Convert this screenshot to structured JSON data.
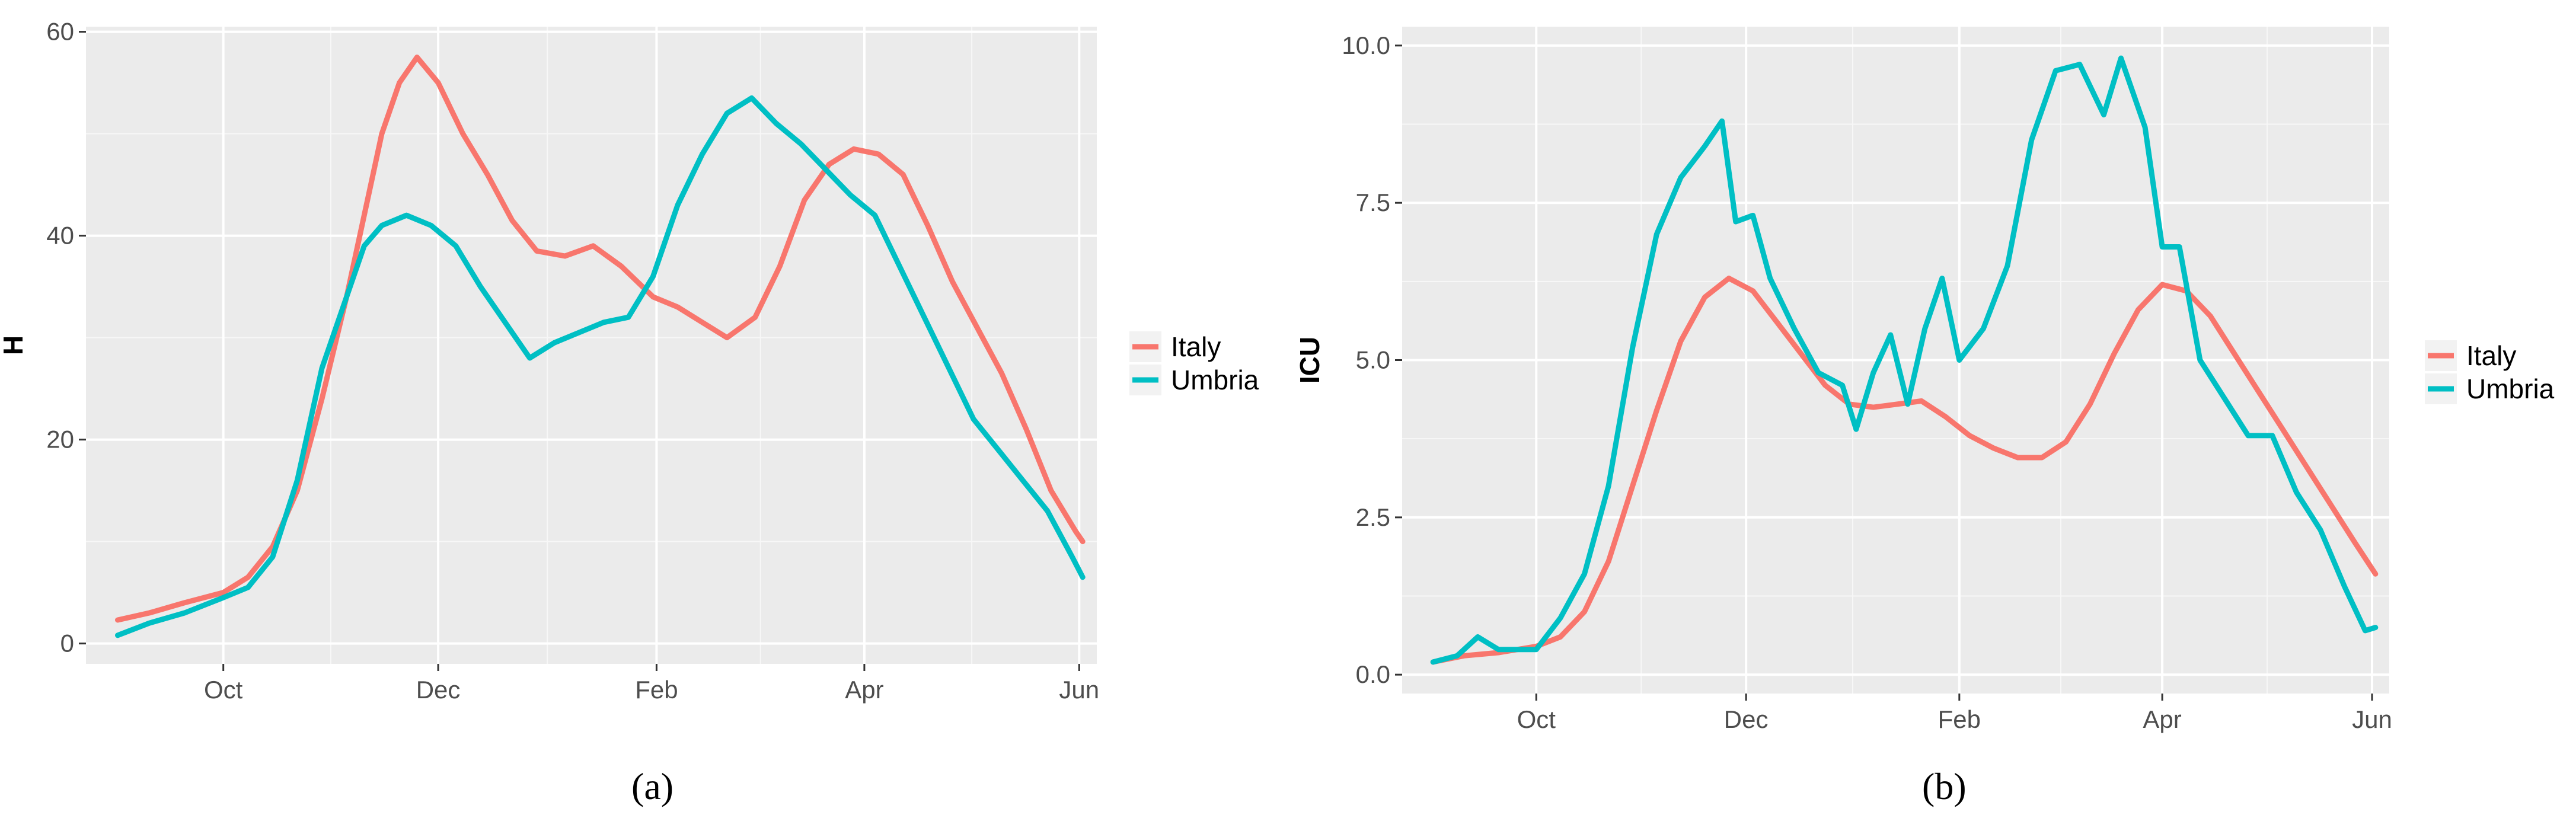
{
  "chart_data": [
    {
      "type": "line",
      "ylabel": "H",
      "xlabel": "",
      "x_range": [
        "2020-08-23",
        "2021-06-06"
      ],
      "ylim": [
        -2,
        60.5
      ],
      "y_ticks": [
        0,
        20,
        40,
        60
      ],
      "y_tick_labels": [
        "0",
        "20",
        "40",
        "60"
      ],
      "x_ticks": [
        "2020-10-01",
        "2020-12-01",
        "2021-02-01",
        "2021-04-01",
        "2021-06-01"
      ],
      "x_tick_labels": [
        "Oct",
        "Dec",
        "Feb",
        "Apr",
        "Jun"
      ],
      "grid": true,
      "legend_position": "right",
      "caption": "(a)",
      "series": [
        {
          "name": "Italy",
          "color": "#F8766D",
          "points": [
            [
              "2020-09-01",
              2.3
            ],
            [
              "2020-09-10",
              3.0
            ],
            [
              "2020-09-20",
              4.0
            ],
            [
              "2020-10-01",
              5.0
            ],
            [
              "2020-10-08",
              6.5
            ],
            [
              "2020-10-15",
              9.5
            ],
            [
              "2020-10-22",
              15.0
            ],
            [
              "2020-10-29",
              24.0
            ],
            [
              "2020-11-05",
              34.0
            ],
            [
              "2020-11-10",
              42.0
            ],
            [
              "2020-11-15",
              50.0
            ],
            [
              "2020-11-20",
              55.0
            ],
            [
              "2020-11-25",
              57.5
            ],
            [
              "2020-12-01",
              55.0
            ],
            [
              "2020-12-08",
              50.0
            ],
            [
              "2020-12-15",
              46.0
            ],
            [
              "2020-12-22",
              41.5
            ],
            [
              "2020-12-29",
              38.5
            ],
            [
              "2021-01-06",
              38.0
            ],
            [
              "2021-01-14",
              39.0
            ],
            [
              "2021-01-22",
              37.0
            ],
            [
              "2021-01-31",
              34.0
            ],
            [
              "2021-02-07",
              33.0
            ],
            [
              "2021-02-14",
              31.5
            ],
            [
              "2021-02-21",
              30.0
            ],
            [
              "2021-03-01",
              32.0
            ],
            [
              "2021-03-08",
              37.0
            ],
            [
              "2021-03-15",
              43.5
            ],
            [
              "2021-03-22",
              47.0
            ],
            [
              "2021-03-29",
              48.5
            ],
            [
              "2021-04-05",
              48.0
            ],
            [
              "2021-04-12",
              46.0
            ],
            [
              "2021-04-19",
              41.0
            ],
            [
              "2021-04-26",
              35.5
            ],
            [
              "2021-05-03",
              31.0
            ],
            [
              "2021-05-10",
              26.5
            ],
            [
              "2021-05-17",
              21.0
            ],
            [
              "2021-05-24",
              15.0
            ],
            [
              "2021-05-31",
              11.0
            ],
            [
              "2021-06-02",
              10.0
            ]
          ]
        },
        {
          "name": "Umbria",
          "color": "#00BFC4",
          "points": [
            [
              "2020-09-01",
              0.8
            ],
            [
              "2020-09-10",
              2.0
            ],
            [
              "2020-09-20",
              3.0
            ],
            [
              "2020-10-01",
              4.5
            ],
            [
              "2020-10-08",
              5.5
            ],
            [
              "2020-10-15",
              8.5
            ],
            [
              "2020-10-22",
              16.0
            ],
            [
              "2020-10-29",
              27.0
            ],
            [
              "2020-11-05",
              34.0
            ],
            [
              "2020-11-10",
              39.0
            ],
            [
              "2020-11-15",
              41.0
            ],
            [
              "2020-11-22",
              42.0
            ],
            [
              "2020-11-29",
              41.0
            ],
            [
              "2020-12-06",
              39.0
            ],
            [
              "2020-12-13",
              35.0
            ],
            [
              "2020-12-20",
              31.5
            ],
            [
              "2020-12-27",
              28.0
            ],
            [
              "2021-01-03",
              29.5
            ],
            [
              "2021-01-10",
              30.5
            ],
            [
              "2021-01-17",
              31.5
            ],
            [
              "2021-01-24",
              32.0
            ],
            [
              "2021-01-31",
              36.0
            ],
            [
              "2021-02-07",
              43.0
            ],
            [
              "2021-02-14",
              48.0
            ],
            [
              "2021-02-21",
              52.0
            ],
            [
              "2021-02-28",
              53.5
            ],
            [
              "2021-03-07",
              51.0
            ],
            [
              "2021-03-14",
              49.0
            ],
            [
              "2021-03-21",
              46.5
            ],
            [
              "2021-03-28",
              44.0
            ],
            [
              "2021-04-04",
              42.0
            ],
            [
              "2021-04-11",
              37.0
            ],
            [
              "2021-04-18",
              32.0
            ],
            [
              "2021-04-25",
              27.0
            ],
            [
              "2021-05-02",
              22.0
            ],
            [
              "2021-05-09",
              19.0
            ],
            [
              "2021-05-16",
              16.0
            ],
            [
              "2021-05-23",
              13.0
            ],
            [
              "2021-05-30",
              8.5
            ],
            [
              "2021-06-02",
              6.5
            ]
          ]
        }
      ]
    },
    {
      "type": "line",
      "ylabel": "ICU",
      "xlabel": "",
      "x_range": [
        "2020-08-23",
        "2021-06-06"
      ],
      "ylim": [
        -0.3,
        10.3
      ],
      "y_ticks": [
        0.0,
        2.5,
        5.0,
        7.5,
        10.0
      ],
      "y_tick_labels": [
        "0.0",
        "2.5",
        "5.0",
        "7.5",
        "10.0"
      ],
      "x_ticks": [
        "2020-10-01",
        "2020-12-01",
        "2021-02-01",
        "2021-04-01",
        "2021-06-01"
      ],
      "x_tick_labels": [
        "Oct",
        "Dec",
        "Feb",
        "Apr",
        "Jun"
      ],
      "grid": true,
      "legend_position": "right",
      "caption": "(b)",
      "series": [
        {
          "name": "Italy",
          "color": "#F8766D",
          "points": [
            [
              "2020-09-01",
              0.2
            ],
            [
              "2020-09-10",
              0.3
            ],
            [
              "2020-09-20",
              0.35
            ],
            [
              "2020-10-01",
              0.45
            ],
            [
              "2020-10-08",
              0.6
            ],
            [
              "2020-10-15",
              1.0
            ],
            [
              "2020-10-22",
              1.8
            ],
            [
              "2020-10-29",
              3.0
            ],
            [
              "2020-11-05",
              4.2
            ],
            [
              "2020-11-12",
              5.3
            ],
            [
              "2020-11-19",
              6.0
            ],
            [
              "2020-11-26",
              6.3
            ],
            [
              "2020-12-03",
              6.1
            ],
            [
              "2020-12-10",
              5.6
            ],
            [
              "2020-12-17",
              5.1
            ],
            [
              "2020-12-24",
              4.6
            ],
            [
              "2020-12-31",
              4.3
            ],
            [
              "2021-01-07",
              4.25
            ],
            [
              "2021-01-14",
              4.3
            ],
            [
              "2021-01-21",
              4.35
            ],
            [
              "2021-01-28",
              4.1
            ],
            [
              "2021-02-04",
              3.8
            ],
            [
              "2021-02-11",
              3.6
            ],
            [
              "2021-02-18",
              3.45
            ],
            [
              "2021-02-25",
              3.45
            ],
            [
              "2021-03-04",
              3.7
            ],
            [
              "2021-03-11",
              4.3
            ],
            [
              "2021-03-18",
              5.1
            ],
            [
              "2021-03-25",
              5.8
            ],
            [
              "2021-04-01",
              6.2
            ],
            [
              "2021-04-08",
              6.1
            ],
            [
              "2021-04-15",
              5.7
            ],
            [
              "2021-04-22",
              5.1
            ],
            [
              "2021-04-29",
              4.5
            ],
            [
              "2021-05-06",
              3.9
            ],
            [
              "2021-05-13",
              3.3
            ],
            [
              "2021-05-20",
              2.7
            ],
            [
              "2021-05-27",
              2.1
            ],
            [
              "2021-06-02",
              1.6
            ]
          ]
        },
        {
          "name": "Umbria",
          "color": "#00BFC4",
          "points": [
            [
              "2020-09-01",
              0.2
            ],
            [
              "2020-09-08",
              0.3
            ],
            [
              "2020-09-14",
              0.6
            ],
            [
              "2020-09-20",
              0.4
            ],
            [
              "2020-10-01",
              0.4
            ],
            [
              "2020-10-08",
              0.9
            ],
            [
              "2020-10-15",
              1.6
            ],
            [
              "2020-10-22",
              3.0
            ],
            [
              "2020-10-29",
              5.2
            ],
            [
              "2020-11-05",
              7.0
            ],
            [
              "2020-11-12",
              7.9
            ],
            [
              "2020-11-19",
              8.4
            ],
            [
              "2020-11-24",
              8.8
            ],
            [
              "2020-11-28",
              7.2
            ],
            [
              "2020-12-03",
              7.3
            ],
            [
              "2020-12-08",
              6.3
            ],
            [
              "2020-12-15",
              5.5
            ],
            [
              "2020-12-22",
              4.8
            ],
            [
              "2020-12-29",
              4.6
            ],
            [
              "2021-01-02",
              3.9
            ],
            [
              "2021-01-07",
              4.8
            ],
            [
              "2021-01-12",
              5.4
            ],
            [
              "2021-01-17",
              4.3
            ],
            [
              "2021-01-22",
              5.5
            ],
            [
              "2021-01-27",
              6.3
            ],
            [
              "2021-02-01",
              5.0
            ],
            [
              "2021-02-08",
              5.5
            ],
            [
              "2021-02-15",
              6.5
            ],
            [
              "2021-02-22",
              8.5
            ],
            [
              "2021-03-01",
              9.6
            ],
            [
              "2021-03-08",
              9.7
            ],
            [
              "2021-03-15",
              8.9
            ],
            [
              "2021-03-20",
              9.8
            ],
            [
              "2021-03-27",
              8.7
            ],
            [
              "2021-04-01",
              6.8
            ],
            [
              "2021-04-06",
              6.8
            ],
            [
              "2021-04-12",
              5.0
            ],
            [
              "2021-04-19",
              4.4
            ],
            [
              "2021-04-26",
              3.8
            ],
            [
              "2021-05-03",
              3.8
            ],
            [
              "2021-05-10",
              2.9
            ],
            [
              "2021-05-17",
              2.3
            ],
            [
              "2021-05-24",
              1.4
            ],
            [
              "2021-05-30",
              0.7
            ],
            [
              "2021-06-02",
              0.75
            ]
          ]
        }
      ]
    }
  ]
}
